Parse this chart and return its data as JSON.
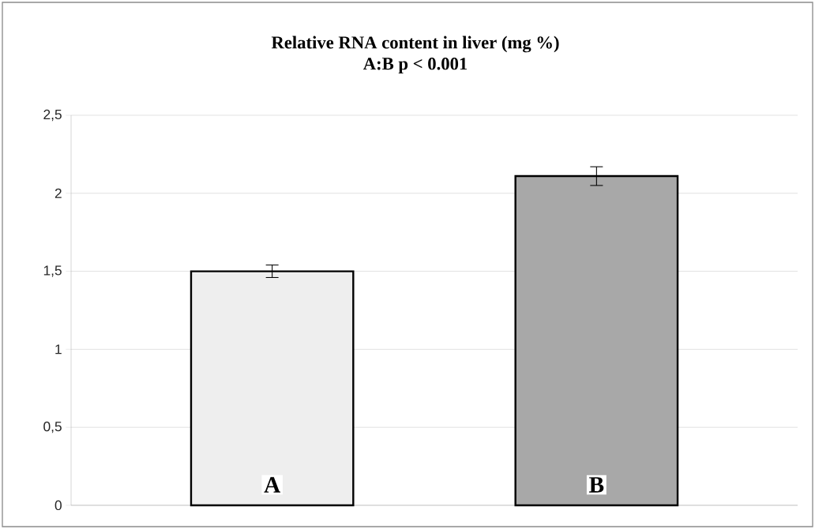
{
  "chart_data": {
    "type": "bar",
    "title": "Relative RNA content in liver (mg %)",
    "subtitle": "A:B    p < 0.001",
    "categories": [
      "A",
      "B"
    ],
    "values": [
      1.5,
      2.11
    ],
    "errors": [
      0.04,
      0.06
    ],
    "colors": [
      "#eeeeee",
      "#a8a8a8"
    ],
    "ylim": [
      0,
      2.5
    ],
    "yticks": [
      0,
      {
        "value": 0.5,
        "label": "0,5"
      },
      1,
      {
        "value": 1.5,
        "label": "1,5"
      },
      2,
      {
        "value": 2.5,
        "label": "2,5"
      }
    ],
    "grid": "y"
  }
}
